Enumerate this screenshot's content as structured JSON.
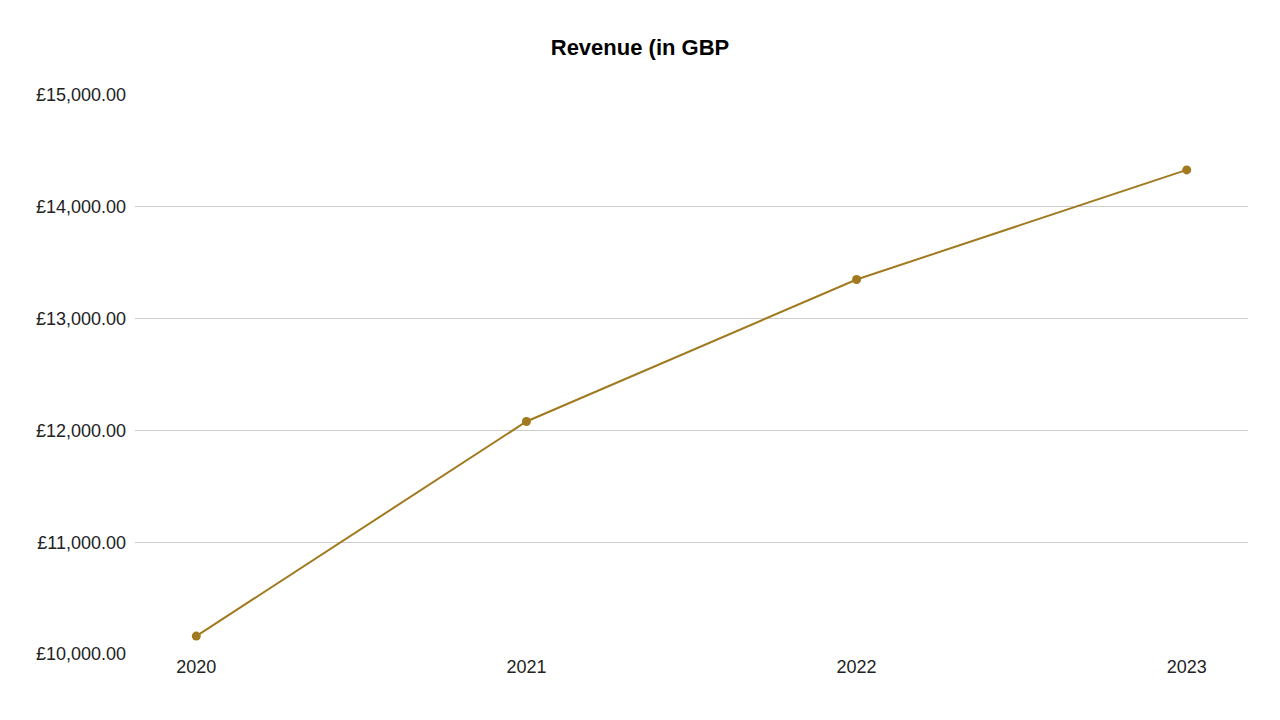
{
  "chart_data": {
    "type": "line",
    "title": "Revenue (in GBP",
    "categories": [
      "2020",
      "2021",
      "2022",
      "2023"
    ],
    "values": [
      10160,
      12080,
      13350,
      14330
    ],
    "color": "#a17a1f",
    "marker": "circle",
    "ylim": [
      10000,
      15000
    ],
    "yticks": [
      {
        "value": 10000,
        "label": "£10,000.00"
      },
      {
        "value": 11000,
        "label": "£11,000.00"
      },
      {
        "value": 12000,
        "label": "£12,000.00"
      },
      {
        "value": 13000,
        "label": "£13,000.00"
      },
      {
        "value": 14000,
        "label": "£14,000.00"
      },
      {
        "value": 15000,
        "label": "£15,000.00"
      }
    ],
    "grid": true
  }
}
